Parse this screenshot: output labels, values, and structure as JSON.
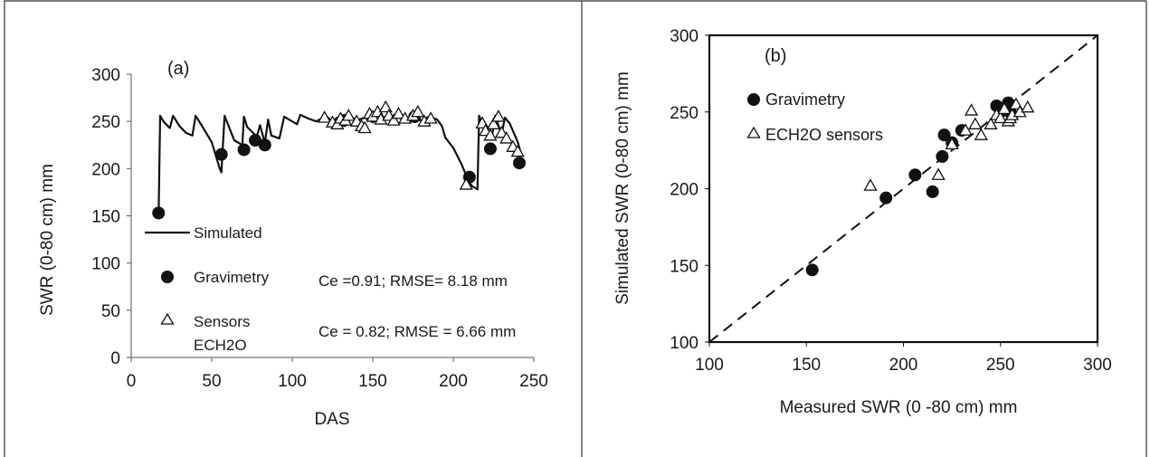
{
  "chart_data": [
    {
      "type": "line",
      "panel_label": "(a)",
      "xlabel": "DAS",
      "ylabel": "SWR  (0-80 cm) mm",
      "xlim": [
        0,
        250
      ],
      "ylim": [
        0,
        300
      ],
      "xticks": [
        0,
        50,
        100,
        150,
        200,
        250
      ],
      "yticks": [
        0,
        50,
        100,
        150,
        200,
        250,
        300
      ],
      "grid": false,
      "legend_position": "bottom-left",
      "series": [
        {
          "name": "Simulated",
          "style": "line",
          "color": "#111111",
          "x": [
            17,
            18,
            20,
            24,
            26,
            30,
            34,
            38,
            40,
            43,
            50,
            55,
            56,
            58,
            64,
            69,
            70,
            72,
            78,
            80,
            83,
            85,
            87,
            92,
            95,
            100,
            103,
            105,
            110,
            115,
            118,
            120,
            125,
            128,
            130,
            135,
            140,
            145,
            150,
            155,
            160,
            165,
            170,
            175,
            180,
            185,
            190,
            193,
            195,
            200,
            205,
            208,
            210,
            212,
            214,
            215,
            216,
            218,
            222,
            224,
            226,
            228,
            230,
            232,
            235,
            237,
            240,
            242
          ],
          "y": [
            150,
            256,
            250,
            243,
            256,
            245,
            238,
            235,
            256,
            248,
            228,
            200,
            196,
            256,
            230,
            225,
            255,
            244,
            234,
            246,
            227,
            252,
            235,
            232,
            255,
            250,
            247,
            257,
            253,
            250,
            253,
            257,
            250,
            254,
            248,
            257,
            251,
            254,
            249,
            255,
            252,
            256,
            250,
            254,
            251,
            255,
            252,
            245,
            233,
            222,
            205,
            193,
            185,
            181,
            179,
            178,
            256,
            248,
            240,
            233,
            256,
            246,
            236,
            254,
            248,
            240,
            228,
            216
          ]
        },
        {
          "name": "Gravimetry",
          "style": "filled-circle",
          "color": "#111111",
          "x": [
            17,
            56,
            70,
            77,
            83,
            132,
            176,
            210,
            223,
            241
          ],
          "y": [
            153,
            215,
            220,
            230,
            225,
            251,
            255,
            191,
            221,
            206
          ]
        },
        {
          "name": "Sensors ECH2O",
          "style": "open-triangle",
          "color": "#111111",
          "x": [
            120,
            125,
            128,
            130,
            133,
            135,
            140,
            143,
            145,
            148,
            150,
            153,
            155,
            158,
            160,
            163,
            166,
            170,
            175,
            178,
            182,
            186,
            208,
            218,
            220,
            223,
            225,
            228,
            230,
            233,
            237,
            240
          ],
          "y": [
            254,
            249,
            247,
            253,
            251,
            256,
            250,
            245,
            243,
            258,
            255,
            260,
            252,
            265,
            256,
            251,
            258,
            253,
            256,
            260,
            250,
            253,
            183,
            248,
            240,
            235,
            247,
            255,
            238,
            232,
            223,
            218
          ]
        }
      ],
      "legend": [
        {
          "label": "Simulated",
          "marker": "line"
        },
        {
          "label": "Gravimetry",
          "marker": "filled-circle"
        },
        {
          "label": "Sensors",
          "label2": "ECH2O",
          "marker": "open-triangle"
        }
      ],
      "annotations": [
        {
          "text": "Ce =0.91; RMSE= 8.18 mm"
        },
        {
          "text": "Ce = 0.82; RMSE = 6.66 mm"
        }
      ]
    },
    {
      "type": "scatter",
      "panel_label": "(b)",
      "xlabel": "Measured SWR (0 -80 cm) mm",
      "ylabel": "Simulated SWR (0-80 cm) mm",
      "xlim": [
        100,
        300
      ],
      "ylim": [
        100,
        300
      ],
      "xticks": [
        100,
        150,
        200,
        250,
        300
      ],
      "yticks": [
        100,
        150,
        200,
        250,
        300
      ],
      "grid": false,
      "legend_position": "top-left",
      "reference_line": {
        "style": "dashed",
        "x": [
          100,
          300
        ],
        "y": [
          100,
          300
        ]
      },
      "series": [
        {
          "name": "Gravimetry",
          "style": "filled-circle",
          "color": "#111111",
          "x": [
            153,
            191,
            206,
            215,
            220,
            221,
            225,
            230,
            248,
            250,
            252,
            254,
            255,
            256
          ],
          "y": [
            147,
            194,
            209,
            198,
            221,
            235,
            230,
            238,
            254,
            250,
            252,
            256,
            250,
            248
          ]
        },
        {
          "name": "ECH2O sensors",
          "style": "open-triangle",
          "color": "#111111",
          "x": [
            183,
            218,
            225,
            232,
            235,
            237,
            240,
            245,
            248,
            250,
            252,
            254,
            255,
            256,
            258,
            260,
            264
          ],
          "y": [
            202,
            209,
            229,
            238,
            251,
            242,
            235,
            242,
            248,
            246,
            252,
            244,
            246,
            248,
            255,
            250,
            253
          ]
        }
      ],
      "legend": [
        {
          "label": "Gravimetry",
          "marker": "filled-circle"
        },
        {
          "label": "ECH2O sensors",
          "marker": "open-triangle"
        }
      ]
    }
  ]
}
